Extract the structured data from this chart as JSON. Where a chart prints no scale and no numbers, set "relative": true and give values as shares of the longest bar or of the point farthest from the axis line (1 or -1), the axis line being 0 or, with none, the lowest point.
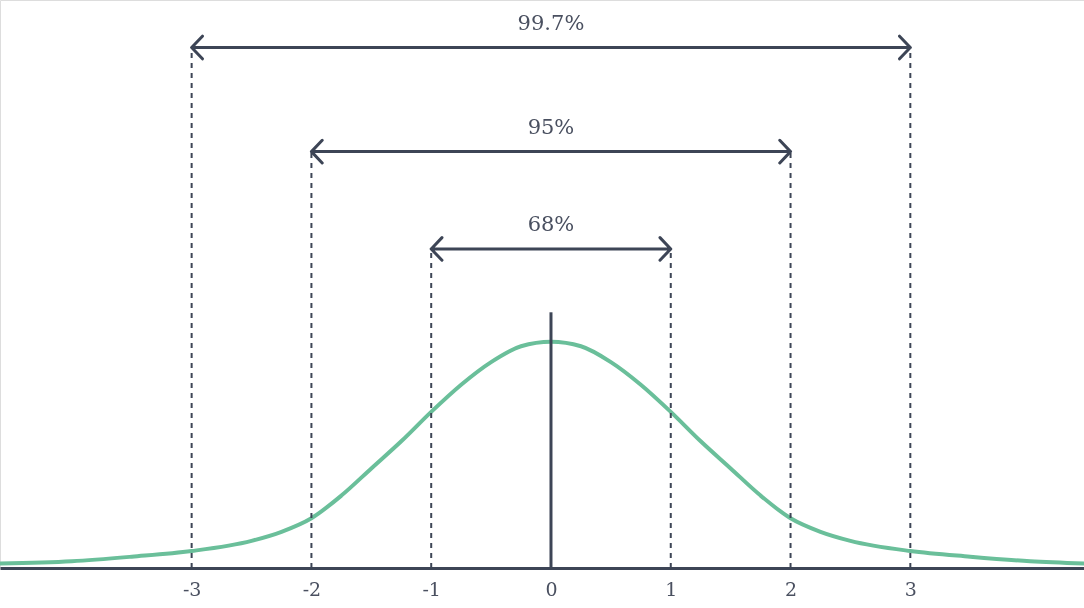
{
  "chart_data": {
    "type": "line",
    "relative": true,
    "x": [
      -4.6,
      -4,
      -3.5,
      -3,
      -2.5,
      -2.25,
      -2,
      -1.75,
      -1.5,
      -1.25,
      -1,
      -0.75,
      -0.5,
      -0.25,
      0,
      0.25,
      0.5,
      0.75,
      1,
      1.25,
      1.5,
      1.75,
      2,
      2.25,
      2.5,
      3,
      3.5,
      4,
      4.45
    ],
    "series": [
      {
        "color": "#6abf9a",
        "values": [
          0.02,
          0.03,
          0.05,
          0.075,
          0.12,
          0.16,
          0.22,
          0.32,
          0.44,
          0.56,
          0.69,
          0.81,
          0.91,
          0.98,
          1,
          0.98,
          0.91,
          0.81,
          0.69,
          0.56,
          0.44,
          0.32,
          0.22,
          0.16,
          0.12,
          0.075,
          0.05,
          0.03,
          0.02
        ]
      }
    ],
    "xlim": [
      -4.6,
      4.45
    ],
    "xticks": [
      -3,
      -2,
      -1,
      0,
      1,
      2,
      3
    ],
    "ref_lines": [
      {
        "axis": "x",
        "value": 0,
        "color": "#3d4556",
        "line_style": "solid"
      },
      {
        "axis": "x",
        "value": -1,
        "color": "#3d4556",
        "line_style": "dashed"
      },
      {
        "axis": "x",
        "value": 1,
        "color": "#3d4556",
        "line_style": "dashed"
      },
      {
        "axis": "x",
        "value": -2,
        "color": "#3d4556",
        "line_style": "dashed"
      },
      {
        "axis": "x",
        "value": 2,
        "color": "#3d4556",
        "line_style": "dashed"
      },
      {
        "axis": "x",
        "value": -3,
        "color": "#3d4556",
        "line_style": "dashed"
      },
      {
        "axis": "x",
        "value": 3,
        "color": "#3d4556",
        "line_style": "dashed"
      }
    ],
    "annotations": [
      "68%",
      "95%",
      "99.7%"
    ]
  }
}
